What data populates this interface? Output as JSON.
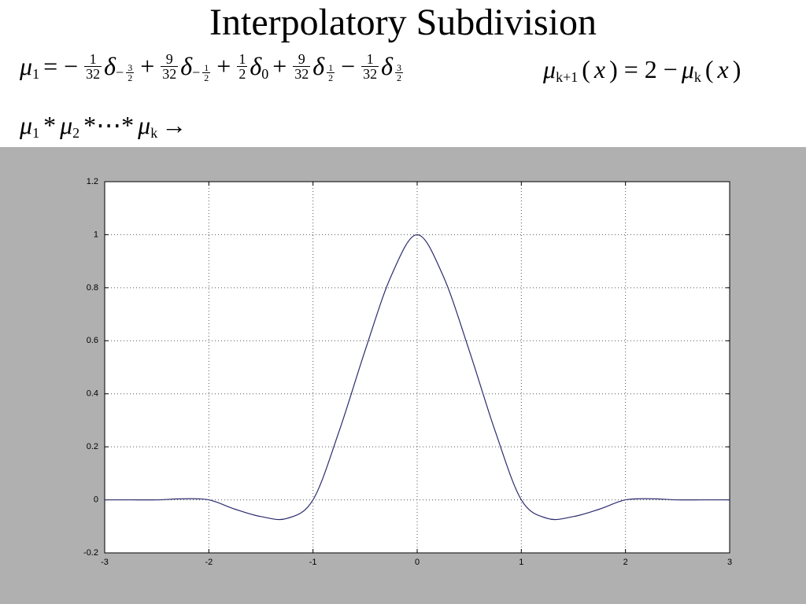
{
  "title": "Interpolatory Subdivision",
  "formulas": [
    [
      {
        "var": "μ",
        "sub": "1"
      },
      {
        "op": "= −"
      },
      {
        "num": "1",
        "den": "32"
      },
      {
        "var": "δ",
        "sub": {
          "sign": "−",
          "num": "3",
          "den": "2"
        }
      },
      {
        "op": "+"
      },
      {
        "num": "9",
        "den": "32"
      },
      {
        "var": "δ",
        "sub": {
          "sign": "−",
          "num": "1",
          "den": "2"
        }
      },
      {
        "op": "+"
      },
      {
        "num": "1",
        "den": "2"
      },
      {
        "var": "δ",
        "sub": "0"
      },
      {
        "op": "+"
      },
      {
        "num": "9",
        "den": "32"
      },
      {
        "var": "δ",
        "sub": {
          "num": "1",
          "den": "2"
        }
      },
      {
        "op": "−"
      },
      {
        "num": "1",
        "den": "32"
      },
      {
        "var": "δ",
        "sub": {
          "num": "3",
          "den": "2"
        }
      }
    ],
    [
      {
        "var": "μ",
        "sub": "k+1"
      },
      {
        "op": "("
      },
      {
        "var": "x"
      },
      {
        "op": ") = 2 −"
      },
      {
        "var": "μ",
        "sub": "k"
      },
      {
        "op": "("
      },
      {
        "var": "x"
      },
      {
        "op": ")"
      }
    ],
    [
      {
        "var": "μ",
        "sub": "1"
      },
      {
        "op": "*"
      },
      {
        "var": "μ",
        "sub": "2"
      },
      {
        "op": "*⋯*"
      },
      {
        "var": "μ",
        "sub": "k"
      },
      {
        "op": "→"
      }
    ]
  ],
  "chart_data": {
    "type": "line",
    "x": [
      -3,
      -2.75,
      -2.5,
      -2.25,
      -2,
      -1.75,
      -1.5,
      -1.25,
      -1,
      -0.75,
      -0.5,
      -0.25,
      0,
      0.25,
      0.5,
      0.75,
      1,
      1.25,
      1.5,
      1.75,
      2,
      2.25,
      2.5,
      2.75,
      3
    ],
    "values": [
      0,
      0,
      0,
      0.004,
      0,
      -0.035,
      -0.063,
      -0.07,
      0,
      0.258,
      0.563,
      0.844,
      1,
      0.844,
      0.563,
      0.258,
      0,
      -0.07,
      -0.063,
      -0.035,
      0,
      0.004,
      0,
      0,
      0
    ],
    "color": "#2b2b6e",
    "xlim": [
      -3,
      3
    ],
    "ylim": [
      -0.2,
      1.2
    ],
    "xticks": [
      -3,
      -2,
      -1,
      0,
      1,
      2,
      3
    ],
    "yticks": [
      -0.2,
      0,
      0.2,
      0.4,
      0.6,
      0.8,
      1,
      1.2
    ],
    "grid": true
  }
}
